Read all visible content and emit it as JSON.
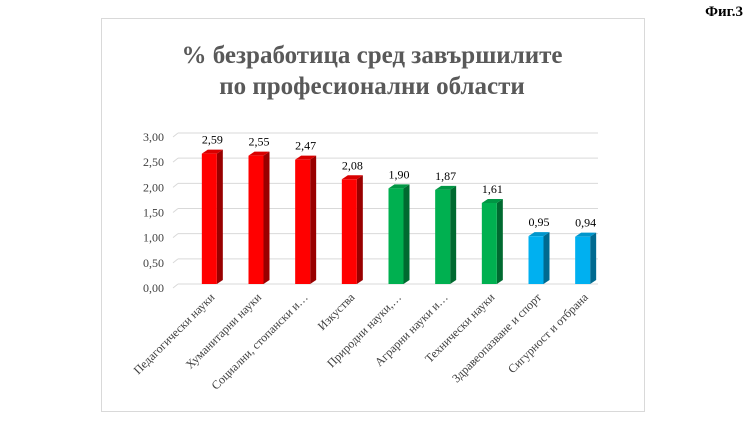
{
  "figure_label": "Фиг.3",
  "chart_data": {
    "type": "bar",
    "title_line1": "% безработица сред завършилите",
    "title_line2": "по професионални области",
    "xlabel": "",
    "ylabel": "",
    "ylim": [
      0,
      3
    ],
    "yticks": [
      "0,00",
      "0,50",
      "1,00",
      "1,50",
      "2,00",
      "2,50",
      "3,00"
    ],
    "grid": true,
    "categories": [
      "Педагогически науки",
      "Хуманитарни науки",
      "Социални, стопански и…",
      "Изкуства",
      "Природни науки,…",
      "Аграрни науки и…",
      "Технически науки",
      "Здравеопазване и спорт",
      "Сигурност и отбрана"
    ],
    "values": [
      2.59,
      2.55,
      2.47,
      2.08,
      1.9,
      1.87,
      1.61,
      0.95,
      0.94
    ],
    "value_labels": [
      "2,59",
      "2,55",
      "2,47",
      "2,08",
      "1,90",
      "1,87",
      "1,61",
      "0,95",
      "0,94"
    ],
    "bar_colors": [
      "#ff0000",
      "#ff0000",
      "#ff0000",
      "#ff0000",
      "#00b050",
      "#00b050",
      "#00b050",
      "#00b0f0",
      "#00b0f0"
    ]
  }
}
